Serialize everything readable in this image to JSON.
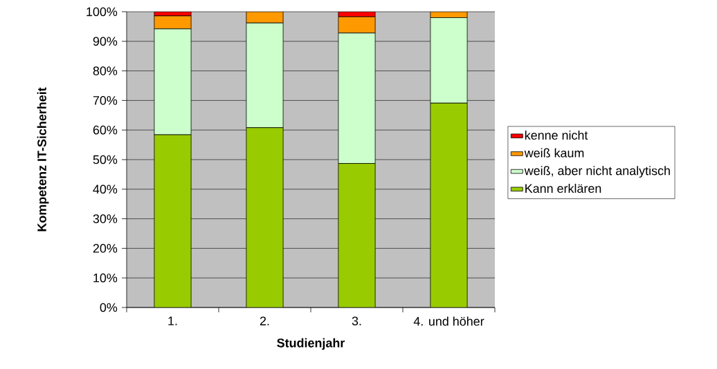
{
  "chart_data": {
    "type": "bar",
    "stacked": true,
    "xlabel": "Studienjahr",
    "ylabel": "Kompetenz IT-Sicherheit",
    "categories": [
      "1.",
      "2.",
      "3.",
      "4. und höher"
    ],
    "series": [
      {
        "name": "Kann erklären",
        "color": "#99cc00",
        "values": [
          58.4,
          60.8,
          48.7,
          69.1
        ]
      },
      {
        "name": "weiß, aber nicht analytisch",
        "color": "#ccffcc",
        "values": [
          35.8,
          35.4,
          44.1,
          28.9
        ]
      },
      {
        "name": "weiß kaum",
        "color": "#ff9900",
        "values": [
          4.4,
          3.8,
          5.5,
          2.0
        ]
      },
      {
        "name": "kenne nicht",
        "color": "#ff0000",
        "values": [
          1.4,
          0,
          1.7,
          0
        ]
      }
    ],
    "ylim": [
      0,
      100
    ],
    "yticks": [
      {
        "value": 0,
        "label": "0%"
      },
      {
        "value": 10,
        "label": "10%"
      },
      {
        "value": 20,
        "label": "20%"
      },
      {
        "value": 30,
        "label": "30%"
      },
      {
        "value": 40,
        "label": "40%"
      },
      {
        "value": 50,
        "label": "50%"
      },
      {
        "value": 60,
        "label": "60%"
      },
      {
        "value": 70,
        "label": "70%"
      },
      {
        "value": 80,
        "label": "80%"
      },
      {
        "value": 90,
        "label": "90%"
      },
      {
        "value": 100,
        "label": "100%"
      }
    ],
    "grid": "y",
    "legend": "right"
  }
}
